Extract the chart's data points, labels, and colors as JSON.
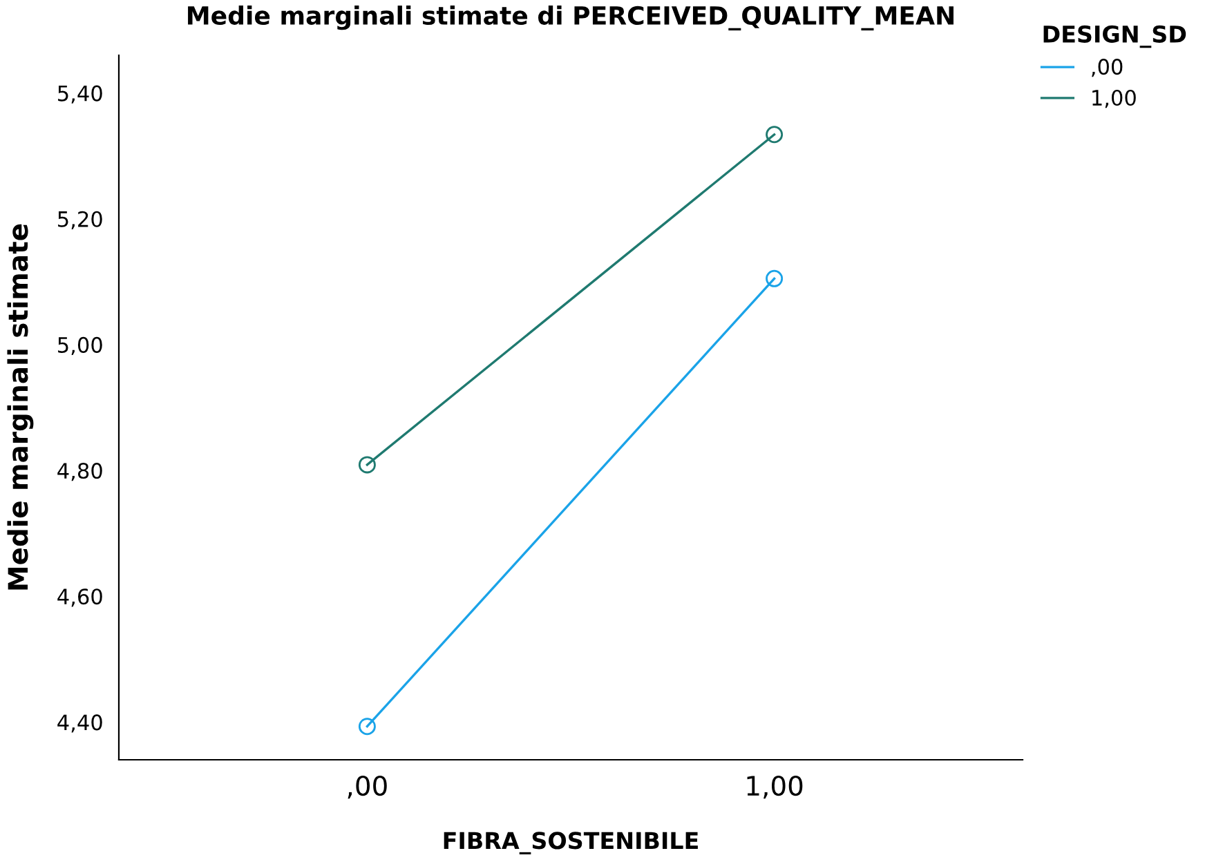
{
  "chart_data": {
    "type": "line",
    "title": "Medie marginali stimate di PERCEIVED_QUALITY_MEAN",
    "xlabel": "FIBRA_SOSTENIBILE",
    "ylabel": "Medie marginali stimate",
    "legend_title": "DESIGN_SD",
    "categories": [
      ",00",
      "1,00"
    ],
    "series": [
      {
        "name": ",00",
        "color": "#1aa3e8",
        "values": [
          4.393,
          5.105
        ]
      },
      {
        "name": "1,00",
        "color": "#1f7a70",
        "values": [
          4.809,
          5.334
        ]
      }
    ],
    "ylim": [
      4.34,
      5.46
    ],
    "yticks": [
      {
        "value": 4.4,
        "label": "4,40"
      },
      {
        "value": 4.6,
        "label": "4,60"
      },
      {
        "value": 4.8,
        "label": "4,80"
      },
      {
        "value": 5.0,
        "label": "5,00"
      },
      {
        "value": 5.2,
        "label": "5,20"
      },
      {
        "value": 5.4,
        "label": "5,40"
      }
    ],
    "grid": false,
    "legend": "top right",
    "marker": "circle",
    "line_style": "solid"
  }
}
